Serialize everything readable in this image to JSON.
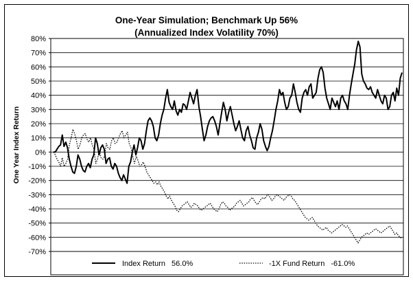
{
  "chart_data": {
    "type": "line",
    "title": "One-Year Simulation;  Benchmark Up 56%",
    "subtitle": "(Annualized Index Volatility 70%)",
    "ylabel": "One Year Index  Return",
    "xlabel": "",
    "ylim": [
      -70,
      80
    ],
    "yticks": [
      80,
      70,
      60,
      50,
      40,
      30,
      20,
      10,
      0,
      -10,
      -20,
      -30,
      -40,
      -50,
      -60,
      -70
    ],
    "ytick_labels": [
      "80%",
      "70%",
      "60%",
      "50%",
      "40%",
      "30%",
      "20%",
      "10%",
      "0%",
      "-10%",
      "-20%",
      "-30%",
      "-40%",
      "-50%",
      "-60%",
      "-70%"
    ],
    "grid": true,
    "legend_placement": "bottom",
    "series": [
      {
        "name": "Index Return",
        "legend_value": "56.0%",
        "style": "solid",
        "color": "#000000",
        "values": [
          0,
          0,
          2,
          4,
          5,
          12,
          4,
          7,
          3,
          -5,
          -10,
          -14,
          -15,
          -10,
          -2,
          -5,
          -10,
          -13,
          -14,
          -10,
          -8,
          -11,
          -5,
          -2,
          10,
          6,
          -2,
          3,
          5,
          2,
          -8,
          -5,
          -4,
          -10,
          -12,
          -8,
          -10,
          -15,
          -18,
          -20,
          -16,
          -19,
          -22,
          -10,
          -7,
          0,
          5,
          -2,
          3,
          10,
          8,
          2,
          6,
          15,
          22,
          24,
          22,
          18,
          10,
          8,
          12,
          20,
          26,
          30,
          38,
          44,
          35,
          32,
          30,
          36,
          29,
          26,
          30,
          28,
          34,
          33,
          30,
          36,
          42,
          38,
          34,
          40,
          44,
          32,
          25,
          16,
          8,
          12,
          18,
          22,
          24,
          25,
          22,
          18,
          12,
          20,
          28,
          35,
          30,
          22,
          28,
          32,
          26,
          20,
          15,
          18,
          22,
          16,
          10,
          8,
          15,
          18,
          12,
          8,
          3,
          2,
          10,
          14,
          20,
          16,
          8,
          4,
          1,
          4,
          10,
          15,
          22,
          30,
          36,
          44,
          40,
          42,
          35,
          30,
          32,
          38,
          40,
          48,
          42,
          35,
          30,
          28,
          38,
          42,
          44,
          40,
          46,
          48,
          38,
          40,
          42,
          52,
          58,
          60,
          56,
          45,
          38,
          34,
          30,
          38,
          35,
          32,
          36,
          30,
          38,
          40,
          36,
          34,
          30,
          40,
          48,
          55,
          62,
          72,
          78,
          74,
          55,
          50,
          48,
          45,
          44,
          46,
          42,
          40,
          38,
          44,
          40,
          36,
          34,
          40,
          38,
          30,
          32,
          40,
          42,
          36,
          45,
          40,
          52,
          56
        ]
      },
      {
        "name": "-1X Fund Return",
        "legend_value": "-61.0%",
        "style": "dotted",
        "color": "#000000",
        "values": [
          0,
          -2,
          -5,
          -7,
          -10,
          -4,
          -10,
          -8,
          -5,
          5,
          10,
          16,
          13,
          8,
          2,
          5,
          10,
          12,
          13,
          9,
          7,
          10,
          5,
          2,
          -8,
          -5,
          1,
          -4,
          -5,
          -3,
          6,
          3,
          2,
          8,
          10,
          6,
          7,
          10,
          13,
          15,
          10,
          12,
          14,
          6,
          3,
          -3,
          -8,
          -3,
          -6,
          -10,
          -9,
          -7,
          -10,
          -14,
          -16,
          -18,
          -20,
          -22,
          -21,
          -23,
          -21,
          -24,
          -26,
          -28,
          -31,
          -33,
          -31,
          -34,
          -36,
          -38,
          -41,
          -42,
          -40,
          -38,
          -37,
          -36,
          -35,
          -37,
          -39,
          -38,
          -36,
          -37,
          -38,
          -40,
          -41,
          -40,
          -39,
          -38,
          -37,
          -36,
          -38,
          -40,
          -41,
          -42,
          -40,
          -37,
          -35,
          -36,
          -38,
          -39,
          -41,
          -40,
          -39,
          -38,
          -36,
          -35,
          -34,
          -36,
          -38,
          -37,
          -36,
          -35,
          -33,
          -32,
          -34,
          -36,
          -37,
          -35,
          -33,
          -32,
          -33,
          -31,
          -30,
          -32,
          -34,
          -33,
          -31,
          -30,
          -31,
          -32,
          -33,
          -34,
          -32,
          -31,
          -30,
          -31,
          -33,
          -34,
          -36,
          -38,
          -40,
          -42,
          -44,
          -46,
          -47,
          -48,
          -47,
          -46,
          -48,
          -50,
          -52,
          -53,
          -54,
          -55,
          -54,
          -53,
          -55,
          -56,
          -57,
          -56,
          -55,
          -54,
          -53,
          -52,
          -51,
          -52,
          -53,
          -52,
          -54,
          -56,
          -58,
          -60,
          -62,
          -64,
          -62,
          -60,
          -59,
          -58,
          -57,
          -58,
          -57,
          -56,
          -55,
          -54,
          -55,
          -56,
          -57,
          -56,
          -55,
          -54,
          -53,
          -52,
          -54,
          -56,
          -58,
          -57,
          -59,
          -60,
          -61
        ]
      }
    ]
  }
}
